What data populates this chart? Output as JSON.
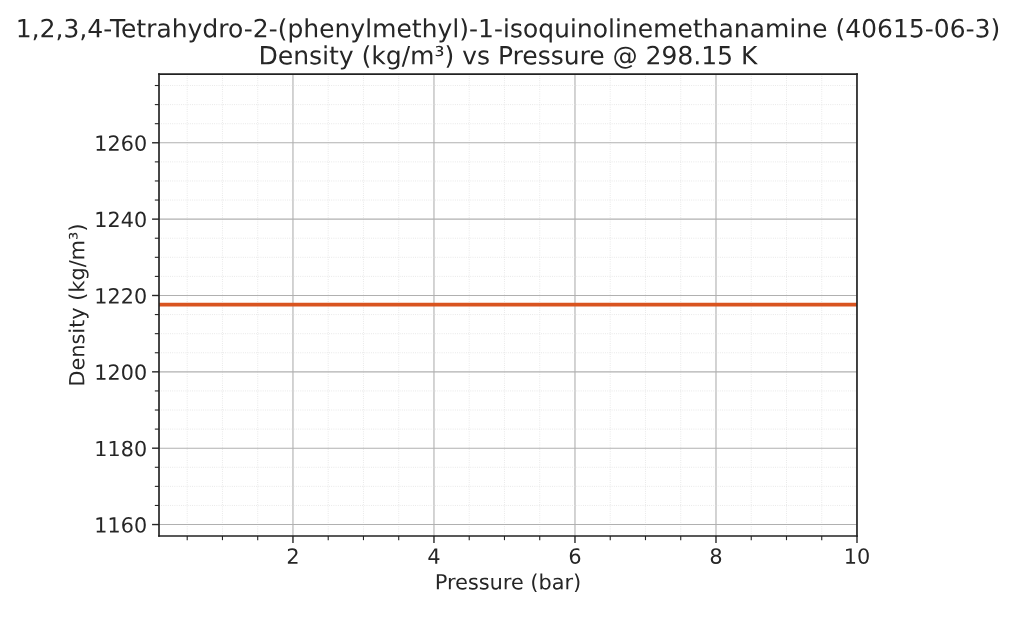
{
  "chart_data": {
    "type": "line",
    "title": "1,2,3,4-Tetrahydro-2-(phenylmethyl)-1-isoquinolinemethanamine (40615-06-3)\nDensity (kg/m³) vs Pressure @ 298.15 K",
    "xlabel": "Pressure (bar)",
    "ylabel": "Density (kg/m³)",
    "x": [
      0.1,
      10
    ],
    "series": [
      {
        "color": "#d95420",
        "values": [
          1217.6,
          1217.6
        ]
      }
    ],
    "xlim": [
      0.1,
      10
    ],
    "xticks": [
      {
        "value": 0.5,
        "label": null
      },
      {
        "value": 1,
        "label": null
      },
      {
        "value": 1.5,
        "label": null
      },
      2,
      {
        "value": 2.5,
        "label": null
      },
      {
        "value": 3,
        "label": null
      },
      {
        "value": 3.5,
        "label": null
      },
      4,
      {
        "value": 4.5,
        "label": null
      },
      {
        "value": 5,
        "label": null
      },
      {
        "value": 5.5,
        "label": null
      },
      6,
      {
        "value": 6.5,
        "label": null
      },
      {
        "value": 7,
        "label": null
      },
      {
        "value": 7.5,
        "label": null
      },
      8,
      {
        "value": 8.5,
        "label": null
      },
      {
        "value": 9,
        "label": null
      },
      {
        "value": 9.5,
        "label": null
      },
      10
    ],
    "ylim": [
      1157,
      1278
    ],
    "yticks": [
      1160,
      {
        "value": 1165,
        "label": null
      },
      {
        "value": 1170,
        "label": null
      },
      {
        "value": 1175,
        "label": null
      },
      1180,
      {
        "value": 1185,
        "label": null
      },
      {
        "value": 1190,
        "label": null
      },
      {
        "value": 1195,
        "label": null
      },
      1200,
      {
        "value": 1205,
        "label": null
      },
      {
        "value": 1210,
        "label": null
      },
      {
        "value": 1215,
        "label": null
      },
      1220,
      {
        "value": 1225,
        "label": null
      },
      {
        "value": 1230,
        "label": null
      },
      {
        "value": 1235,
        "label": null
      },
      1240,
      {
        "value": 1245,
        "label": null
      },
      {
        "value": 1250,
        "label": null
      },
      {
        "value": 1255,
        "label": null
      },
      1260,
      {
        "value": 1265,
        "label": null
      },
      {
        "value": 1270,
        "label": null
      },
      {
        "value": 1275,
        "label": null
      }
    ],
    "grid": true,
    "marker": "none",
    "line_style": "solid"
  }
}
